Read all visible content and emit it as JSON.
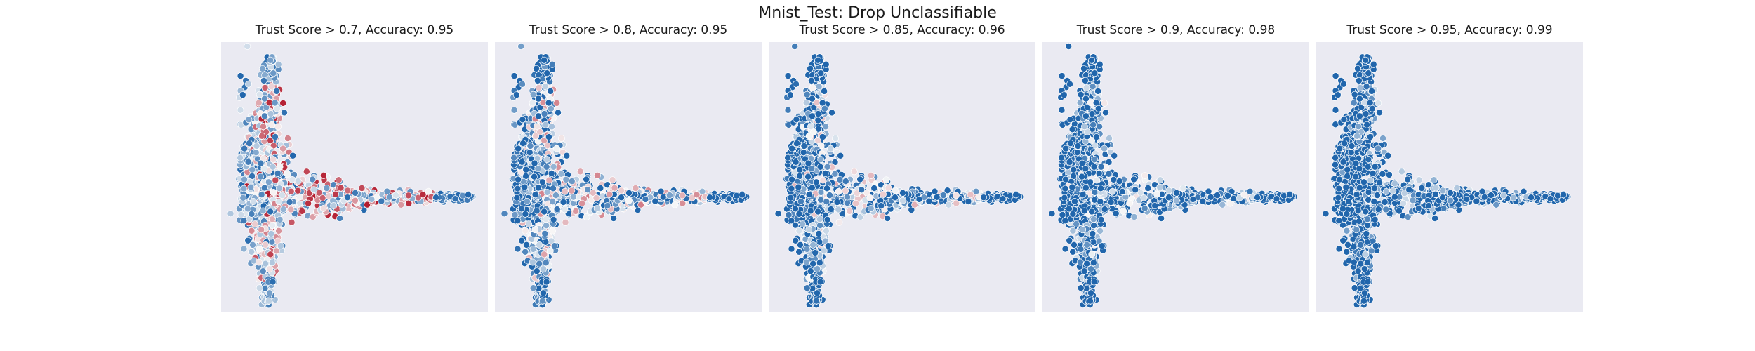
{
  "figure": {
    "title": "Mnist_Test: Drop Unclassifiable"
  },
  "colors": {
    "background": "#eaeaf2",
    "high": "#2166ac",
    "mid": "#f7f7f7",
    "low": "#b2182b"
  },
  "chart_data": [
    {
      "type": "scatter",
      "title": "Trust Score > 0.7, Accuracy: 0.95",
      "threshold": 0.7,
      "accuracy": 0.95,
      "grid": false,
      "colormap": "RdBu"
    },
    {
      "type": "scatter",
      "title": "Trust Score > 0.8, Accuracy: 0.95",
      "threshold": 0.8,
      "accuracy": 0.95,
      "grid": false,
      "colormap": "RdBu"
    },
    {
      "type": "scatter",
      "title": "Trust Score > 0.85, Accuracy: 0.96",
      "threshold": 0.85,
      "accuracy": 0.96,
      "grid": false,
      "colormap": "RdBu"
    },
    {
      "type": "scatter",
      "title": "Trust Score > 0.9, Accuracy: 0.98",
      "threshold": 0.9,
      "accuracy": 0.98,
      "grid": false,
      "colormap": "RdBu"
    },
    {
      "type": "scatter",
      "title": "Trust Score > 0.95, Accuracy: 0.99",
      "threshold": 0.95,
      "accuracy": 0.99,
      "grid": false,
      "colormap": "RdBu"
    }
  ]
}
